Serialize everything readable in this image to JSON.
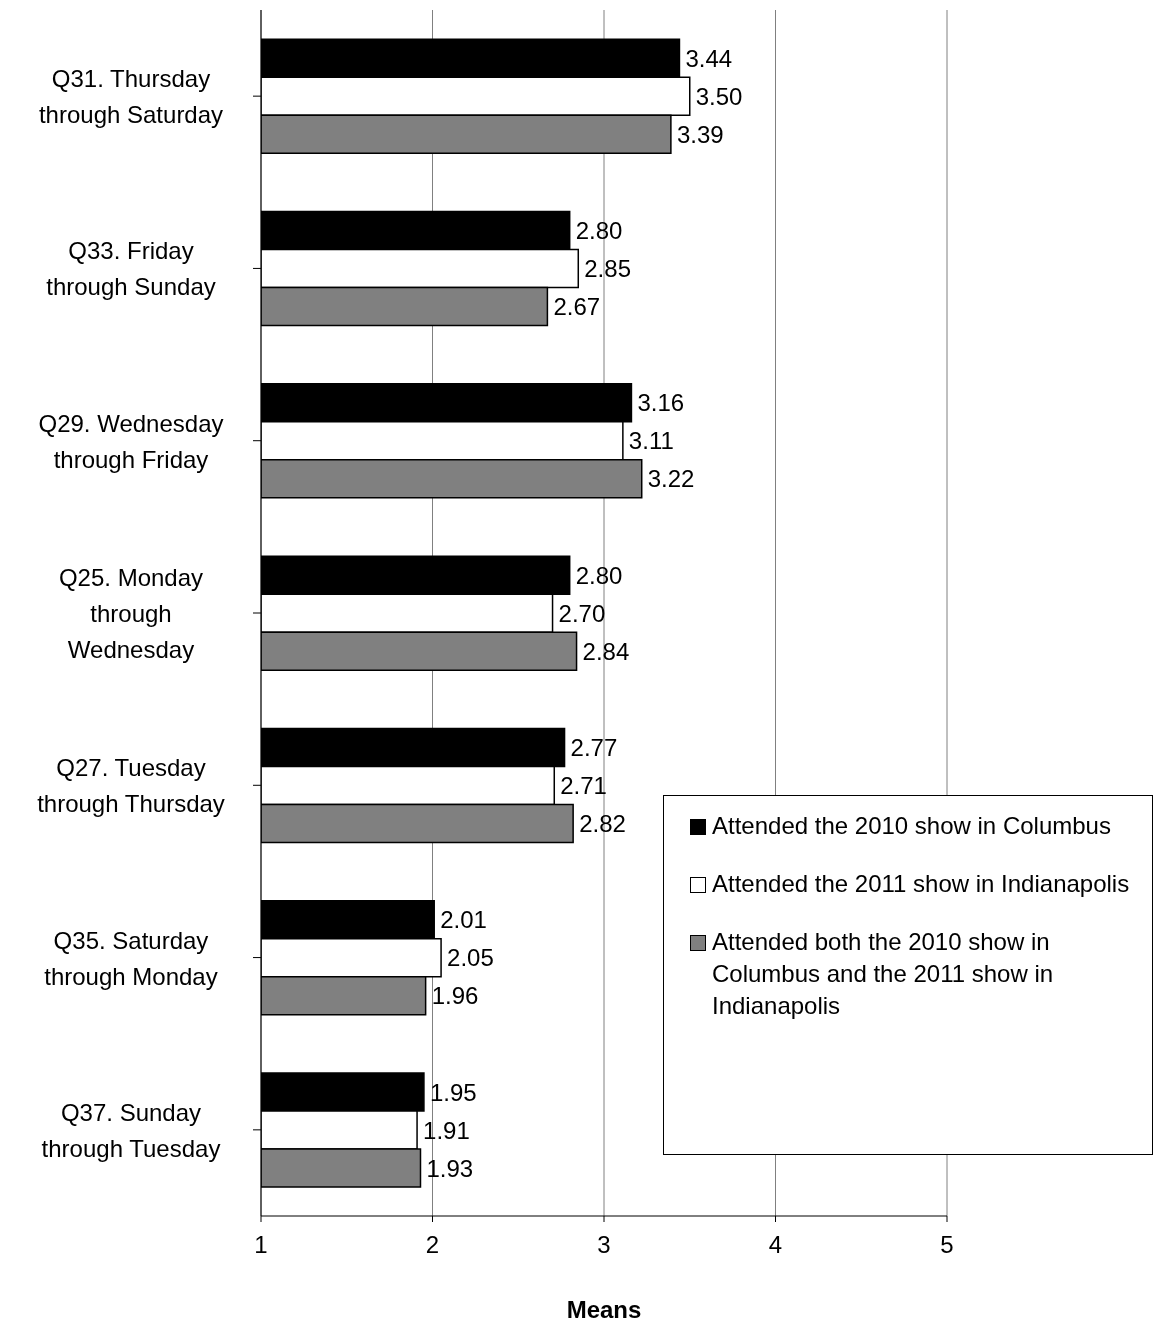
{
  "chart_data": {
    "type": "bar",
    "orientation": "horizontal",
    "xlabel": "Means",
    "categories": [
      "Q31. Thursday through Saturday",
      "Q33. Friday through Sunday",
      "Q29. Wednesday through Friday",
      "Q25. Monday through Wednesday",
      "Q27. Tuesday through Thursday",
      "Q35. Saturday through Monday",
      "Q37. Sunday through Tuesday"
    ],
    "series": [
      {
        "name": "Attended the 2010 show in Columbus",
        "color": "#000000",
        "values": [
          3.44,
          2.8,
          3.16,
          2.8,
          2.77,
          2.01,
          1.95
        ],
        "value_labels": [
          "3.44",
          "2.80",
          "3.16",
          "2.80",
          "2.77",
          "2.01",
          "1.95"
        ]
      },
      {
        "name": "Attended the 2011 show in Indianapolis",
        "color": "#ffffff",
        "values": [
          3.5,
          2.85,
          3.11,
          2.7,
          2.71,
          2.05,
          1.91
        ],
        "value_labels": [
          "3.50",
          "2.85",
          "3.11",
          "2.70",
          "2.71",
          "2.05",
          "1.91"
        ]
      },
      {
        "name": "Attended both the 2010 show in Columbus and the 2011 show in Indianapolis",
        "color": "#808080",
        "values": [
          3.39,
          2.67,
          3.22,
          2.84,
          2.82,
          1.96,
          1.93
        ],
        "value_labels": [
          "3.39",
          "2.67",
          "3.22",
          "2.84",
          "2.82",
          "1.96",
          "1.93"
        ]
      }
    ],
    "xlim": [
      1,
      5
    ],
    "xticks": [
      1,
      2,
      3,
      4,
      5
    ],
    "grid": "x",
    "legend": "bottom right"
  }
}
